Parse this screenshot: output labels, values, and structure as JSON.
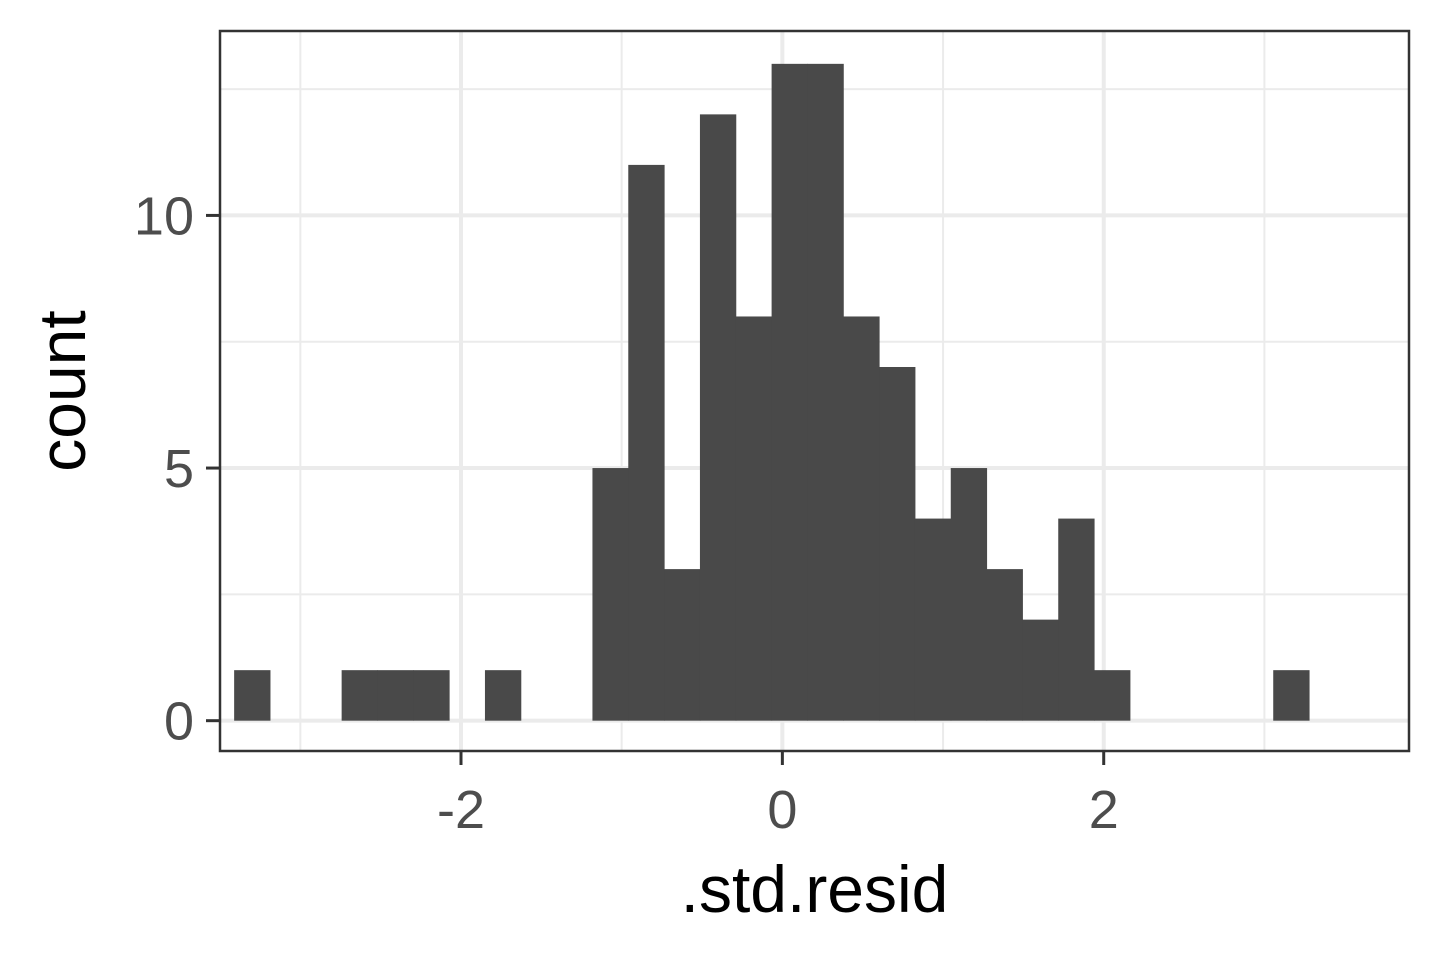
{
  "chart_data": {
    "type": "bar",
    "xlabel": ".std.resid",
    "ylabel": "count",
    "xlim": [
      -3.5,
      3.9
    ],
    "ylim": [
      -0.6,
      13.65
    ],
    "x_ticks": [
      -2,
      0,
      2
    ],
    "x_tick_labels": [
      "-2",
      "0",
      "2"
    ],
    "x_minor_breaks": [
      -3,
      -1,
      1,
      3
    ],
    "y_ticks": [
      0,
      5,
      10
    ],
    "y_tick_labels": [
      "0",
      "5",
      "10"
    ],
    "y_minor_breaks": [
      2.5,
      7.5,
      12.5
    ],
    "grid": true,
    "bin_width": 0.223,
    "bin_start": -3.412,
    "counts": [
      1,
      0,
      0,
      1,
      1,
      1,
      0,
      1,
      0,
      0,
      5,
      11,
      3,
      12,
      8,
      13,
      13,
      8,
      7,
      4,
      5,
      3,
      2,
      4,
      1,
      0,
      0,
      0,
      0,
      1
    ],
    "bar_color": "#494949",
    "panel_border_color": "#333333",
    "grid_color": "#ebebeb"
  }
}
